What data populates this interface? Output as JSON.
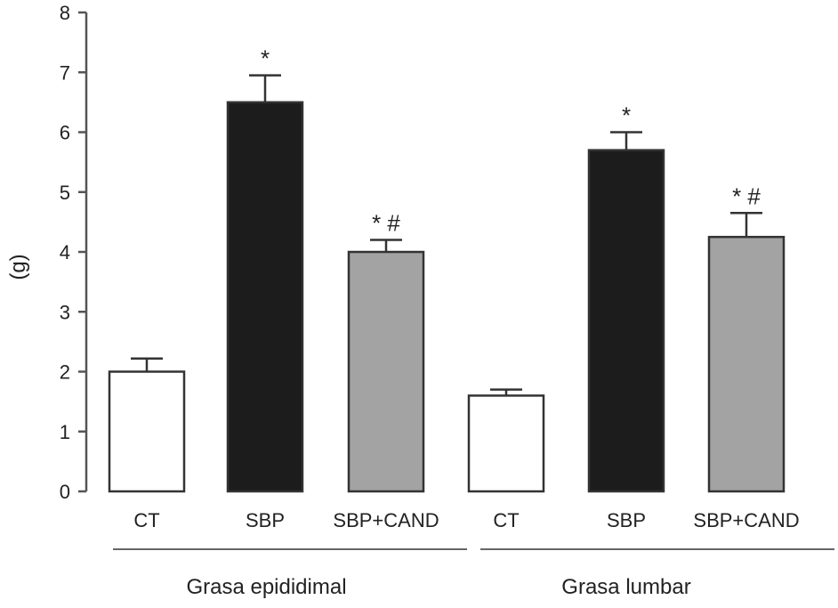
{
  "chart_data": {
    "type": "bar",
    "title": "",
    "xlabel": "",
    "ylabel": "(g)",
    "ylim": [
      0,
      8
    ],
    "yticks": [
      "0",
      "1",
      "2",
      "3",
      "4",
      "5",
      "6",
      "7",
      "8"
    ],
    "grid": false,
    "legend": "none",
    "groups": [
      {
        "label": "Grasa epididimal",
        "bars": [
          {
            "category": "CT",
            "value": 2.0,
            "error": 0.22,
            "fill": "#ffffff",
            "annotation": ""
          },
          {
            "category": "SBP",
            "value": 6.5,
            "error": 0.45,
            "fill": "#1c1c1c",
            "annotation": "*"
          },
          {
            "category": "SBP+CAND",
            "value": 4.0,
            "error": 0.2,
            "fill": "#a3a3a3",
            "annotation": "* #"
          }
        ]
      },
      {
        "label": "Grasa lumbar",
        "bars": [
          {
            "category": "CT",
            "value": 1.6,
            "error": 0.1,
            "fill": "#ffffff",
            "annotation": ""
          },
          {
            "category": "SBP",
            "value": 5.7,
            "error": 0.3,
            "fill": "#1c1c1c",
            "annotation": "*"
          },
          {
            "category": "SBP+CAND",
            "value": 4.25,
            "error": 0.4,
            "fill": "#a3a3a3",
            "annotation": "* #"
          }
        ]
      }
    ]
  }
}
